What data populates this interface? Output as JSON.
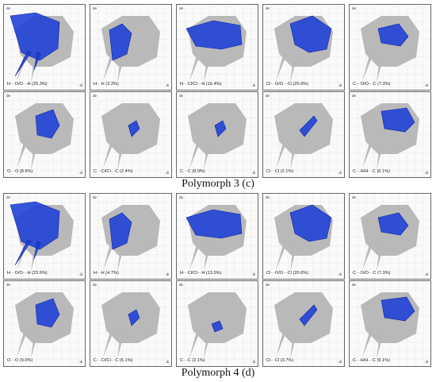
{
  "axis_labels": {
    "de": "de",
    "di": "di"
  },
  "panels_c": [
    {
      "label": "H···O/O···H (25.3%)",
      "shape": "hb"
    },
    {
      "label": "H···H (3.3%)",
      "shape": "hh"
    },
    {
      "label": "H···Cl/Cl···H (16.4%)",
      "shape": "wing"
    },
    {
      "label": "Cl···O/O···Cl (20.6%)",
      "shape": "clo"
    },
    {
      "label": "C···O/O···C (7.3%)",
      "shape": "co"
    },
    {
      "label": "O···O (8.9%)",
      "shape": "oo"
    },
    {
      "label": "C···Cl/Cl···C (2.4%)",
      "shape": "small"
    },
    {
      "label": "C···C (8.9%)",
      "shape": "small"
    },
    {
      "label": "Cl···Cl (2.1%)",
      "shape": "clcl"
    },
    {
      "label": "C···H/H···C (6.1%)",
      "shape": "ch"
    }
  ],
  "caption_c": "Polymorph 3 (c)",
  "panels_d": [
    {
      "label": "H···O/O···H (23.6%)",
      "shape": "hb"
    },
    {
      "label": "H···H (4.7%)",
      "shape": "hh"
    },
    {
      "label": "H···Cl/Cl···H (13.5%)",
      "shape": "wing"
    },
    {
      "label": "Cl···O/O···Cl (20.6%)",
      "shape": "clo"
    },
    {
      "label": "C···O/O···C (7.3%)",
      "shape": "co"
    },
    {
      "label": "O···O (9.0%)",
      "shape": "oo"
    },
    {
      "label": "C···Cl/Cl···C (6.1%)",
      "shape": "small"
    },
    {
      "label": "C···C (2.1%)",
      "shape": "cc"
    },
    {
      "label": "Cl···Cl (3.7%)",
      "shape": "clcl"
    },
    {
      "label": "C···H/H···C (9.1%)",
      "shape": "ch"
    }
  ],
  "caption_d": "Polymorph 4 (d)"
}
